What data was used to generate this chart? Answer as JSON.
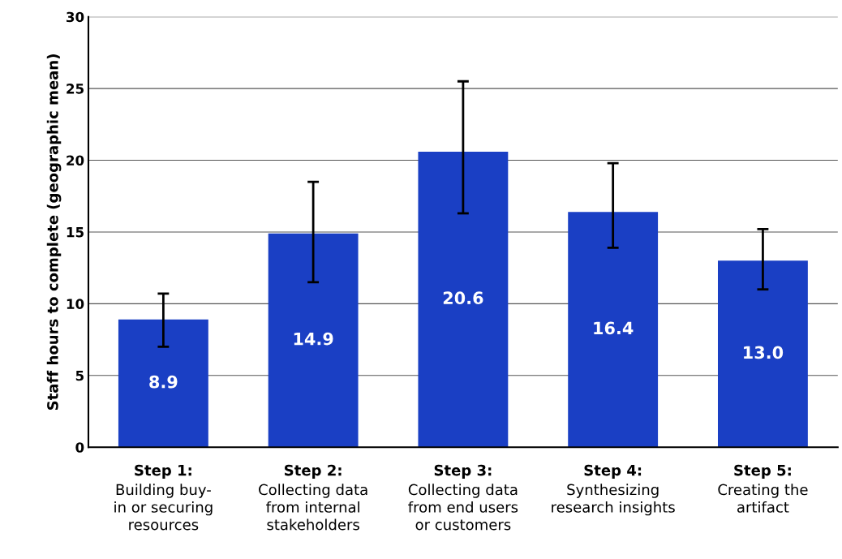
{
  "chart_data": {
    "type": "bar",
    "ylabel": "Staff hours to complete (geographic mean)",
    "categories": [
      "Step 1:\nBuilding buy-\nin or securing\nresources",
      "Step 2:\nCollecting data\nfrom internal\nstakeholders",
      "Step 3:\nCollecting data\nfrom end users\nor customers",
      "Step 4:\nSynthesizing\nresearch insights",
      "Step 5:\nCreating the\nartifact"
    ],
    "values": [
      8.9,
      14.9,
      20.6,
      16.4,
      13.0
    ],
    "errors": [
      [
        7.0,
        10.7
      ],
      [
        11.5,
        18.5
      ],
      [
        16.3,
        25.5
      ],
      [
        13.9,
        19.8
      ],
      [
        11.0,
        15.2
      ]
    ],
    "value_labels": [
      "8.9",
      "14.9",
      "20.6",
      "16.4",
      "13.0"
    ],
    "color": "#1a3fc4",
    "ylim": [
      0,
      30
    ],
    "yticks": [
      0,
      5,
      10,
      15,
      20,
      25,
      30
    ],
    "grid": "y"
  }
}
